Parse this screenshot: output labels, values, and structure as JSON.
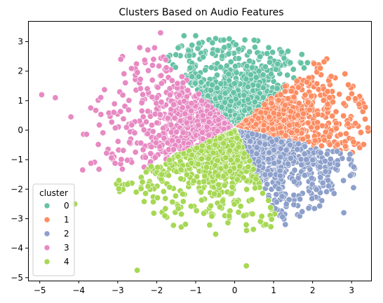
{
  "chart_data": {
    "type": "scatter",
    "title": "Clusters Based on Audio Features",
    "xlabel": "",
    "ylabel": "",
    "xlim": [
      -5.3,
      3.5
    ],
    "ylim": [
      -5.1,
      3.7
    ],
    "x_ticks": [
      -5,
      -4,
      -3,
      -2,
      -1,
      0,
      1,
      2,
      3
    ],
    "y_ticks": [
      -5,
      -4,
      -3,
      -2,
      -1,
      0,
      1,
      2,
      3
    ],
    "grid": false,
    "legend": {
      "title": "cluster",
      "placement": "lower-left"
    },
    "series": [
      {
        "name": "0",
        "color": "#66c2a5",
        "center": [
          -0.3,
          2.0
        ],
        "angle_range_deg": [
          50,
          125
        ],
        "r_max": 3.0,
        "description_points": [
          [
            -1.3,
            3.2
          ],
          [
            -1.0,
            3.2
          ],
          [
            0.5,
            3.05
          ],
          [
            1.2,
            2.65
          ],
          [
            -0.5,
            0.2
          ],
          [
            0.9,
            2.3
          ]
        ]
      },
      {
        "name": "1",
        "color": "#fc8d62",
        "center": [
          1.8,
          0.8
        ],
        "angle_range_deg": [
          -15,
          50
        ],
        "r_max": 3.2,
        "description_points": [
          [
            3.05,
            -0.4
          ],
          [
            2.8,
            0.9
          ],
          [
            2.2,
            2.1
          ],
          [
            0.55,
            0.2
          ]
        ]
      },
      {
        "name": "2",
        "color": "#8da0cb",
        "center": [
          1.3,
          -1.5
        ],
        "angle_range_deg": [
          -70,
          -15
        ],
        "r_max": 3.2,
        "description_points": [
          [
            3.05,
            -1.95
          ],
          [
            2.8,
            -2.8
          ],
          [
            2.2,
            -1.6
          ],
          [
            1.3,
            -3.2
          ],
          [
            -0.5,
            -0.5
          ]
        ]
      },
      {
        "name": "3",
        "color": "#e78ac3",
        "center": [
          -2.2,
          0.8
        ],
        "angle_range_deg": [
          125,
          210
        ],
        "r_max": 3.6,
        "description_points": [
          [
            -4.95,
            1.2
          ],
          [
            -4.6,
            1.1
          ],
          [
            -4.2,
            0.45
          ],
          [
            -3.9,
            -1.35
          ],
          [
            -1.9,
            3.3
          ]
        ]
      },
      {
        "name": "4",
        "color": "#a6d854",
        "center": [
          -1.5,
          -2.2
        ],
        "angle_range_deg": [
          210,
          290
        ],
        "r_max": 3.4,
        "description_points": [
          [
            -2.5,
            -4.75
          ],
          [
            -4.1,
            -2.5
          ],
          [
            0.3,
            -4.6
          ],
          [
            -0.5,
            -0.5
          ],
          [
            0.8,
            -3.2
          ]
        ]
      }
    ]
  }
}
